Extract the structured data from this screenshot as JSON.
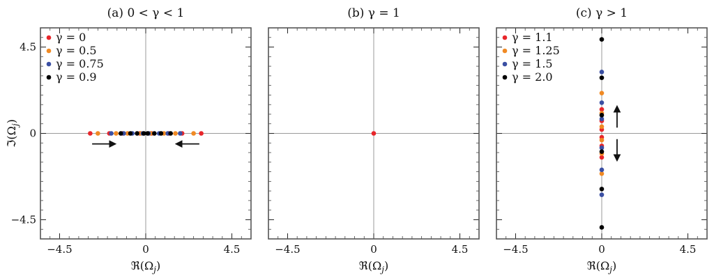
{
  "chart_data": [
    {
      "type": "scatter",
      "title": "(a)  0 < γ < 1",
      "xlabel": "ℜ(Ω",
      "xlabel_sub": "j",
      "xlabel_close": ")",
      "ylabel": "ℑ(Ω",
      "ylabel_sub": "j",
      "ylabel_close": ")",
      "xlim": [
        -5.5,
        5.5
      ],
      "ylim": [
        -5.5,
        5.5
      ],
      "xticks": [
        -4.5,
        0,
        4.5
      ],
      "xtick_labels": [
        "−4.5",
        "0",
        "4.5"
      ],
      "yticks": [
        -4.5,
        0,
        4.5
      ],
      "ytick_labels": [
        "−4.5",
        "0",
        "4.5"
      ],
      "legend_position": "top-left",
      "arrows": [
        {
          "from": [
            -2.8,
            -0.55
          ],
          "to": [
            -1.6,
            -0.55
          ]
        },
        {
          "from": [
            2.8,
            -0.55
          ],
          "to": [
            1.6,
            -0.55
          ]
        }
      ],
      "series": [
        {
          "name": "γ = 0",
          "color": "#e8262b",
          "points": [
            [
              -2.9,
              0
            ],
            [
              -1.9,
              0
            ],
            [
              -1.2,
              0
            ],
            [
              -0.3,
              0
            ],
            [
              0.3,
              0
            ],
            [
              1.2,
              0
            ],
            [
              1.9,
              0
            ],
            [
              2.9,
              0
            ]
          ]
        },
        {
          "name": "γ = 0.5",
          "color": "#f08a24",
          "points": [
            [
              -2.5,
              0
            ],
            [
              -1.55,
              0
            ],
            [
              -0.95,
              0
            ],
            [
              -0.25,
              0
            ],
            [
              0.25,
              0
            ],
            [
              0.95,
              0
            ],
            [
              1.55,
              0
            ],
            [
              2.5,
              0
            ]
          ]
        },
        {
          "name": "γ = 0.75",
          "color": "#3a4fa3",
          "points": [
            [
              -1.8,
              0
            ],
            [
              -1.15,
              0
            ],
            [
              -0.7,
              0
            ],
            [
              -0.15,
              0
            ],
            [
              0.15,
              0
            ],
            [
              0.7,
              0
            ],
            [
              1.15,
              0
            ],
            [
              1.8,
              0
            ]
          ]
        },
        {
          "name": "γ = 0.9",
          "color": "#000000",
          "points": [
            [
              -1.3,
              0
            ],
            [
              -0.8,
              0
            ],
            [
              -0.45,
              0
            ],
            [
              -0.1,
              0
            ],
            [
              0.1,
              0
            ],
            [
              0.45,
              0
            ],
            [
              0.8,
              0
            ],
            [
              1.3,
              0
            ]
          ]
        }
      ]
    },
    {
      "type": "scatter",
      "title": "(b)  γ = 1",
      "xlabel": "ℜ(Ω",
      "xlabel_sub": "j",
      "xlabel_close": ")",
      "xlim": [
        -5.5,
        5.5
      ],
      "ylim": [
        -5.5,
        5.5
      ],
      "xticks": [
        -4.5,
        0,
        4.5
      ],
      "xtick_labels": [
        "−4.5",
        "0",
        "4.5"
      ],
      "yticks": [
        -4.5,
        0,
        4.5
      ],
      "ytick_labels": [
        "",
        "",
        ""
      ],
      "arrows": [],
      "series": [
        {
          "color": "#e8262b",
          "points": [
            [
              0,
              0
            ]
          ]
        }
      ]
    },
    {
      "type": "scatter",
      "title": "(c)  γ > 1",
      "xlabel": "ℜ(Ω",
      "xlabel_sub": "j",
      "xlabel_close": ")",
      "xlim": [
        -5.5,
        5.5
      ],
      "ylim": [
        -5.5,
        5.5
      ],
      "xticks": [
        -4.5,
        0,
        4.5
      ],
      "xtick_labels": [
        "−4.5",
        "0",
        "4.5"
      ],
      "yticks": [
        -4.5,
        0,
        4.5
      ],
      "ytick_labels": [
        "",
        "",
        ""
      ],
      "legend_position": "top-left",
      "arrows": [
        {
          "from": [
            0.8,
            0.3
          ],
          "to": [
            0.8,
            1.4
          ]
        },
        {
          "from": [
            0.8,
            -0.3
          ],
          "to": [
            0.8,
            -1.4
          ]
        }
      ],
      "series": [
        {
          "name": "γ = 1.1",
          "color": "#e8262b",
          "points": [
            [
              0,
              1.25
            ],
            [
              0,
              0.65
            ],
            [
              0,
              0.2
            ],
            [
              0,
              -0.2
            ],
            [
              0,
              -0.65
            ],
            [
              0,
              -1.25
            ]
          ]
        },
        {
          "name": "γ = 1.25",
          "color": "#f08a24",
          "points": [
            [
              0,
              2.1
            ],
            [
              0,
              1.05
            ],
            [
              0,
              0.35
            ],
            [
              0,
              -0.35
            ],
            [
              0,
              -1.05
            ],
            [
              0,
              -2.1
            ]
          ]
        },
        {
          "name": "γ = 1.5",
          "color": "#3a4fa3",
          "points": [
            [
              0,
              3.2
            ],
            [
              0,
              1.6
            ],
            [
              0,
              0.75
            ],
            [
              0,
              -0.75
            ],
            [
              0,
              -1.9
            ],
            [
              0,
              -3.2
            ]
          ]
        },
        {
          "name": "γ = 2.0",
          "color": "#000000",
          "points": [
            [
              0,
              4.9
            ],
            [
              0,
              2.9
            ],
            [
              0,
              0.95
            ],
            [
              0,
              -0.95
            ],
            [
              0,
              -2.9
            ],
            [
              0,
              -4.9
            ]
          ]
        }
      ]
    }
  ]
}
